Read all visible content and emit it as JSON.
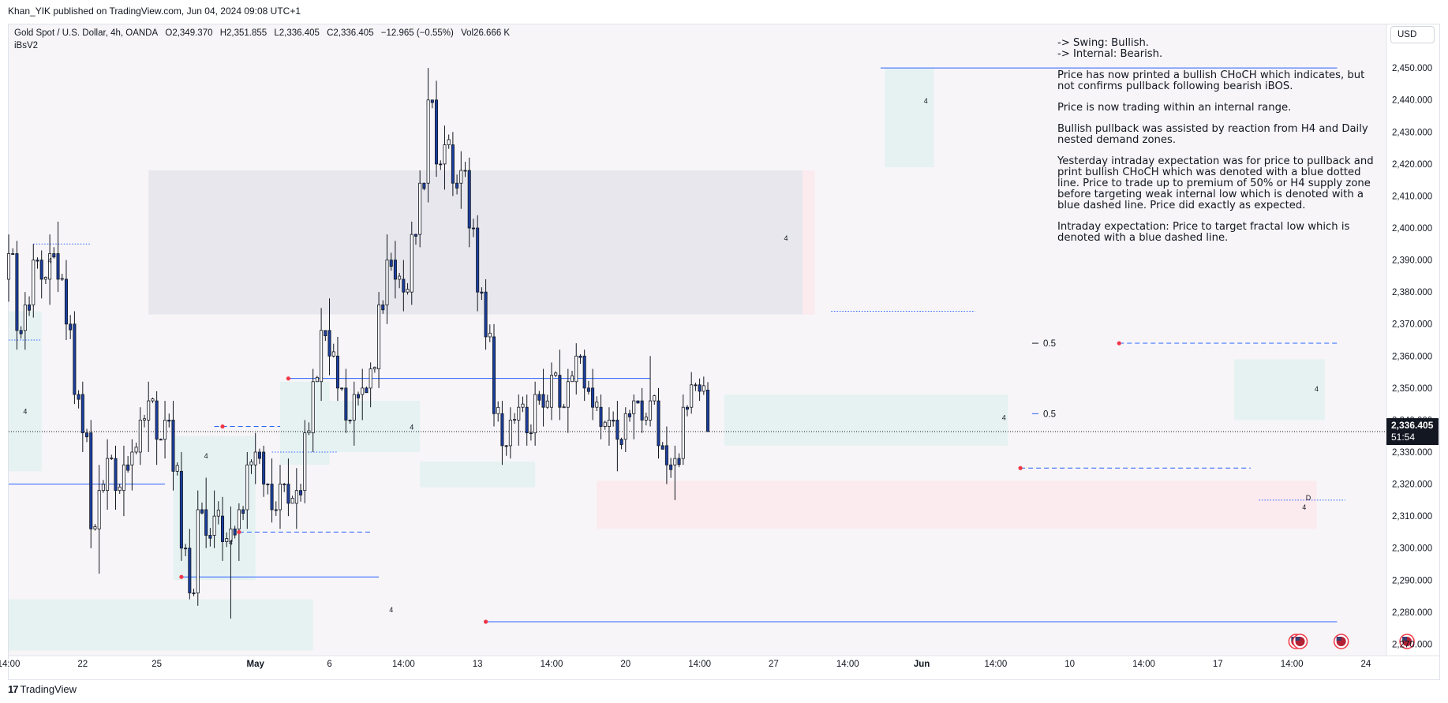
{
  "header": {
    "published_text": "Khan_YIK published on TradingView.com, Jun 04, 2024 09:08 UTC+1"
  },
  "legend": {
    "symbol": "Gold Spot / U.S. Dollar, 4h, OANDA",
    "open": "O2,349.370",
    "high": "H2,351.855",
    "low": "L2,336.405",
    "close": "C2,336.405",
    "change": "−12.965 (−0.55%)",
    "volume": "Vol26.666 K",
    "indicator": "iBsV2"
  },
  "currency_button": "USD",
  "current_price": {
    "price": "2,336.405",
    "timer": "51:54",
    "value": 2336.405
  },
  "notes": {
    "swing": " -> Swing:  Bullish.",
    "internal": "-> Internal:  Bearish.",
    "p1": "Price has now printed a bullish CHoCH which indicates, but not confirms pullback following bearish iBOS.",
    "p2": "Price is now trading within an internal range.",
    "p3": "Bullish pullback was assisted by reaction from H4 and Daily nested demand zones.",
    "p4": "Yesterday intraday expectation was for price to pullback and print bullish CHoCH which was denoted with a blue dotted line.  Price to trade up to premium of 50% or H4 supply zone before targeting weak internal low which is denoted with a blue dashed line.  Price did exactly as expected.",
    "p5": "Intraday expectation: Price to target fractal low which is denoted with a blue dashed line."
  },
  "footer": {
    "logo_text": "TradingView",
    "logo_mark": "17"
  },
  "colors": {
    "bull_candle": "#ffffff",
    "bear_candle": "#1b3fa0",
    "wick": "#131722",
    "structure_line": "#2962ff",
    "demand_zone": "#e3f2f1",
    "supply_zone": "#e4e6eb",
    "discount_zone": "#fbe9ec",
    "swing_point": "#f23645"
  },
  "chart_data": {
    "type": "candlestick",
    "title": "Gold Spot / U.S. Dollar, 4h, OANDA",
    "y_ticks": [
      "2,460.000",
      "2,450.000",
      "2,440.000",
      "2,430.000",
      "2,420.000",
      "2,410.000",
      "2,400.000",
      "2,390.000",
      "2,380.000",
      "2,370.000",
      "2,360.000",
      "2,350.000",
      "2,340.000",
      "2,330.000",
      "2,320.000",
      "2,310.000",
      "2,300.000",
      "2,290.000",
      "2,280.000",
      "2,270.000"
    ],
    "y_tick_values": [
      2460,
      2450,
      2440,
      2430,
      2420,
      2410,
      2400,
      2390,
      2380,
      2370,
      2360,
      2350,
      2340,
      2330,
      2320,
      2310,
      2300,
      2290,
      2280,
      2270
    ],
    "ylim": [
      2266.4,
      2463.6
    ],
    "x_ticks": [
      {
        "label": "14:00",
        "bar": 0
      },
      {
        "label": "22",
        "bar": 18
      },
      {
        "label": "25",
        "bar": 36
      },
      {
        "label": "May",
        "bar": 60
      },
      {
        "label": "6",
        "bar": 78
      },
      {
        "label": "14:00",
        "bar": 96
      },
      {
        "label": "13",
        "bar": 114
      },
      {
        "label": "14:00",
        "bar": 132
      },
      {
        "label": "20",
        "bar": 150
      },
      {
        "label": "14:00",
        "bar": 168
      },
      {
        "label": "27",
        "bar": 186
      },
      {
        "label": "14:00",
        "bar": 204
      },
      {
        "label": "Jun",
        "bar": 222
      },
      {
        "label": "14:00",
        "bar": 240
      },
      {
        "label": "10",
        "bar": 258
      },
      {
        "label": "14:00",
        "bar": 276
      },
      {
        "label": "17",
        "bar": 294
      },
      {
        "label": "14:00",
        "bar": 312
      },
      {
        "label": "24",
        "bar": 330
      }
    ],
    "bold_x_ticks": [
      "May",
      "Jun"
    ],
    "anchors": [
      [
        0,
        2384,
        2398,
        2377,
        2392
      ],
      [
        2,
        2392,
        2396,
        2362,
        2368
      ],
      [
        4,
        2368,
        2380,
        2362,
        2376
      ],
      [
        6,
        2376,
        2395,
        2372,
        2390
      ],
      [
        8,
        2390,
        2393,
        2378,
        2384
      ],
      [
        10,
        2384,
        2398,
        2376,
        2392
      ],
      [
        12,
        2392,
        2402,
        2380,
        2384
      ],
      [
        14,
        2384,
        2390,
        2365,
        2370
      ],
      [
        16,
        2370,
        2374,
        2345,
        2348
      ],
      [
        18,
        2348,
        2352,
        2330,
        2336
      ],
      [
        20,
        2336,
        2340,
        2300,
        2306
      ],
      [
        22,
        2306,
        2326,
        2292,
        2318
      ],
      [
        24,
        2318,
        2334,
        2312,
        2328
      ],
      [
        26,
        2328,
        2332,
        2312,
        2318
      ],
      [
        28,
        2318,
        2332,
        2310,
        2326
      ],
      [
        30,
        2326,
        2334,
        2318,
        2330
      ],
      [
        32,
        2330,
        2344,
        2326,
        2340
      ],
      [
        34,
        2340,
        2352,
        2330,
        2346
      ],
      [
        36,
        2346,
        2349,
        2326,
        2334
      ],
      [
        38,
        2334,
        2346,
        2328,
        2340
      ],
      [
        40,
        2340,
        2346,
        2318,
        2324
      ],
      [
        42,
        2324,
        2330,
        2296,
        2300
      ],
      [
        44,
        2300,
        2306,
        2284,
        2286
      ],
      [
        46,
        2286,
        2318,
        2282,
        2312
      ],
      [
        48,
        2312,
        2322,
        2300,
        2304
      ],
      [
        50,
        2304,
        2318,
        2300,
        2310
      ],
      [
        52,
        2310,
        2316,
        2296,
        2302
      ],
      [
        54,
        2302,
        2313,
        2278,
        2306
      ],
      [
        56,
        2306,
        2314,
        2296,
        2312
      ],
      [
        58,
        2312,
        2330,
        2306,
        2326
      ],
      [
        60,
        2326,
        2336,
        2320,
        2330
      ],
      [
        62,
        2330,
        2332,
        2316,
        2320
      ],
      [
        64,
        2320,
        2328,
        2308,
        2312
      ],
      [
        66,
        2312,
        2326,
        2306,
        2320
      ],
      [
        68,
        2320,
        2328,
        2310,
        2314
      ],
      [
        70,
        2314,
        2325,
        2306,
        2318
      ],
      [
        72,
        2318,
        2340,
        2314,
        2336
      ],
      [
        74,
        2336,
        2356,
        2330,
        2352
      ],
      [
        76,
        2352,
        2375,
        2346,
        2368
      ],
      [
        78,
        2368,
        2378,
        2354,
        2360
      ],
      [
        80,
        2360,
        2366,
        2346,
        2350
      ],
      [
        82,
        2350,
        2356,
        2336,
        2340
      ],
      [
        84,
        2340,
        2352,
        2332,
        2348
      ],
      [
        86,
        2348,
        2356,
        2340,
        2350
      ],
      [
        88,
        2350,
        2358,
        2344,
        2356
      ],
      [
        90,
        2356,
        2380,
        2350,
        2376
      ],
      [
        92,
        2376,
        2398,
        2370,
        2390
      ],
      [
        94,
        2390,
        2396,
        2378,
        2384
      ],
      [
        96,
        2384,
        2390,
        2374,
        2380
      ],
      [
        98,
        2380,
        2402,
        2376,
        2398
      ],
      [
        100,
        2398,
        2418,
        2394,
        2414
      ],
      [
        102,
        2414,
        2450,
        2408,
        2440
      ],
      [
        104,
        2440,
        2446,
        2416,
        2420
      ],
      [
        106,
        2420,
        2432,
        2412,
        2426
      ],
      [
        108,
        2426,
        2430,
        2410,
        2414
      ],
      [
        110,
        2414,
        2424,
        2406,
        2418
      ],
      [
        112,
        2418,
        2422,
        2394,
        2400
      ],
      [
        114,
        2400,
        2404,
        2374,
        2380
      ],
      [
        116,
        2380,
        2384,
        2362,
        2366
      ],
      [
        118,
        2366,
        2370,
        2338,
        2342
      ],
      [
        120,
        2342,
        2346,
        2326,
        2332
      ],
      [
        122,
        2332,
        2344,
        2328,
        2340
      ],
      [
        124,
        2340,
        2348,
        2332,
        2344
      ],
      [
        126,
        2344,
        2348,
        2332,
        2336
      ],
      [
        128,
        2336,
        2352,
        2332,
        2348
      ],
      [
        130,
        2348,
        2356,
        2338,
        2344
      ],
      [
        132,
        2344,
        2358,
        2340,
        2354
      ],
      [
        134,
        2354,
        2362,
        2340,
        2344
      ],
      [
        136,
        2344,
        2356,
        2336,
        2352
      ],
      [
        138,
        2352,
        2364,
        2348,
        2360
      ],
      [
        140,
        2360,
        2362,
        2346,
        2350
      ],
      [
        142,
        2350,
        2356,
        2340,
        2344
      ],
      [
        144,
        2344,
        2348,
        2334,
        2338
      ],
      [
        146,
        2338,
        2344,
        2332,
        2340
      ],
      [
        148,
        2340,
        2346,
        2324,
        2334
      ],
      [
        150,
        2334,
        2344,
        2330,
        2342
      ],
      [
        152,
        2342,
        2348,
        2334,
        2346
      ],
      [
        154,
        2346,
        2350,
        2336,
        2340
      ],
      [
        156,
        2340,
        2360,
        2338,
        2346
      ],
      [
        158,
        2346,
        2350,
        2328,
        2332
      ],
      [
        160,
        2332,
        2338,
        2320,
        2326
      ],
      [
        162,
        2326,
        2332,
        2315,
        2328
      ],
      [
        164,
        2328,
        2348,
        2326,
        2344
      ],
      [
        166,
        2344,
        2355,
        2342,
        2351
      ],
      [
        168,
        2351,
        2353,
        2346,
        2349
      ],
      [
        170,
        2349.37,
        2351.855,
        2336.405,
        2336.405
      ]
    ],
    "bar_range": [
      0,
      335
    ],
    "zones": [
      {
        "kind": "supply",
        "x1": 34,
        "x2": 193,
        "y1": 2373,
        "y2": 2418
      },
      {
        "kind": "supply-edge",
        "x1": 193,
        "x2": 196,
        "y1": 2373,
        "y2": 2418
      },
      {
        "kind": "demand",
        "x1": 0,
        "x2": 8,
        "y1": 2324,
        "y2": 2374
      },
      {
        "kind": "demand",
        "x1": 0,
        "x2": 74,
        "y1": 2268,
        "y2": 2284
      },
      {
        "kind": "demand",
        "x1": 40,
        "x2": 60,
        "y1": 2290,
        "y2": 2335
      },
      {
        "kind": "demand",
        "x1": 66,
        "x2": 78,
        "y1": 2326,
        "y2": 2352
      },
      {
        "kind": "demand",
        "x1": 78,
        "x2": 100,
        "y1": 2330,
        "y2": 2346
      },
      {
        "kind": "demand",
        "x1": 100,
        "x2": 128,
        "y1": 2319,
        "y2": 2327
      },
      {
        "kind": "demand",
        "x1": 174,
        "x2": 243,
        "y1": 2332,
        "y2": 2348
      },
      {
        "kind": "demand",
        "x1": 213,
        "x2": 225,
        "y1": 2419,
        "y2": 2450
      },
      {
        "kind": "demand",
        "x1": 298,
        "x2": 320,
        "y1": 2340,
        "y2": 2359
      },
      {
        "kind": "discount",
        "x1": 143,
        "x2": 318,
        "y1": 2306,
        "y2": 2321
      }
    ],
    "lines": [
      {
        "style": "solid",
        "x1": 212,
        "x2": 323,
        "y": 2450
      },
      {
        "style": "solid",
        "x1": 68,
        "x2": 156,
        "y": 2353
      },
      {
        "style": "solid",
        "x1": 0,
        "x2": 38,
        "y": 2320
      },
      {
        "style": "solid",
        "x1": 42,
        "x2": 90,
        "y": 2291
      },
      {
        "style": "solid",
        "x1": 116,
        "x2": 323,
        "y": 2277
      },
      {
        "style": "dashed",
        "x1": 270,
        "x2": 323,
        "y": 2364
      },
      {
        "style": "dashed",
        "x1": 246,
        "x2": 302,
        "y": 2325
      },
      {
        "style": "dashed",
        "x1": 50,
        "x2": 66,
        "y": 2338
      },
      {
        "style": "dashed",
        "x1": 56,
        "x2": 88,
        "y": 2305
      },
      {
        "style": "dotted",
        "x1": 0,
        "x2": 8,
        "y": 2365
      },
      {
        "style": "dotted",
        "x1": 200,
        "x2": 235,
        "y": 2374
      },
      {
        "style": "dotted",
        "x1": 304,
        "x2": 325,
        "y": 2315
      },
      {
        "style": "dotted",
        "x1": 6,
        "x2": 20,
        "y": 2395
      },
      {
        "style": "dotted",
        "x1": 64,
        "x2": 80,
        "y": 2330
      }
    ],
    "swing_points": [
      {
        "bar": 42,
        "price": 2291
      },
      {
        "bar": 68,
        "price": 2353
      },
      {
        "bar": 52,
        "price": 2338
      },
      {
        "bar": 56,
        "price": 2305
      },
      {
        "bar": 116,
        "price": 2277
      },
      {
        "bar": 246,
        "price": 2325
      },
      {
        "bar": 270,
        "price": 2364
      }
    ],
    "level_labels": [
      {
        "text": "0.5",
        "price": 2364
      },
      {
        "text": "0.5",
        "price": 2342
      }
    ],
    "small_numbers": [
      {
        "text": "4",
        "bar": 223,
        "price": 2439
      },
      {
        "text": "4",
        "bar": 189,
        "price": 2396
      },
      {
        "text": "4",
        "bar": 10,
        "price": 2389
      },
      {
        "text": "4",
        "bar": 4,
        "price": 2342
      },
      {
        "text": "4",
        "bar": 48,
        "price": 2328
      },
      {
        "text": "4",
        "bar": 98,
        "price": 2337
      },
      {
        "text": "4",
        "bar": 54,
        "price": 2301
      },
      {
        "text": "4",
        "bar": 93,
        "price": 2280
      },
      {
        "text": "4",
        "bar": 242,
        "price": 2340
      },
      {
        "text": "4",
        "bar": 318,
        "price": 2349
      },
      {
        "text": "4",
        "bar": 315,
        "price": 2312
      },
      {
        "text": "D",
        "bar": 316,
        "price": 2315
      }
    ],
    "event_icons": [
      {
        "bar": 313
      },
      {
        "bar": 314
      },
      {
        "bar": 324
      },
      {
        "bar": 340
      }
    ]
  }
}
